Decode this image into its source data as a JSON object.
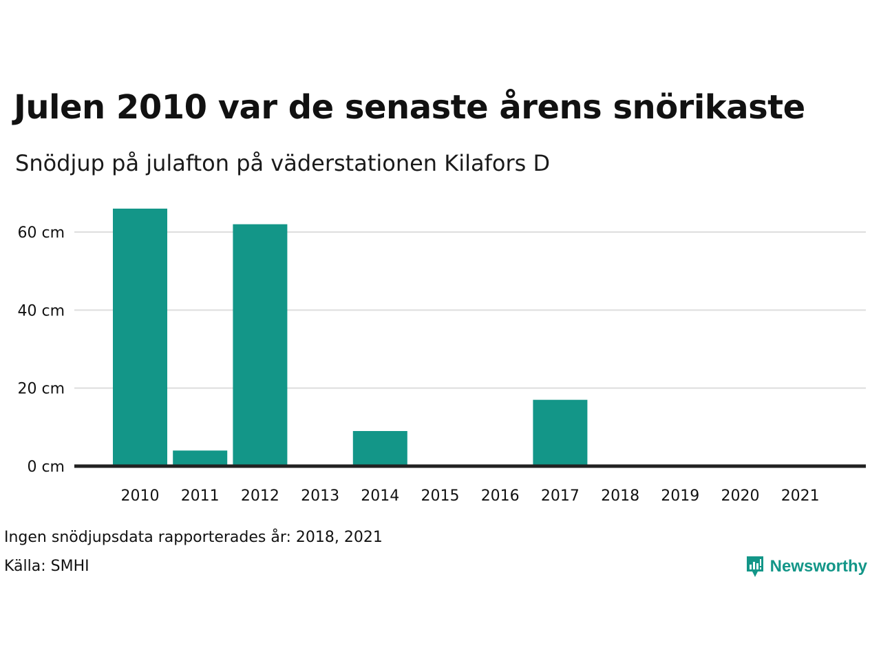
{
  "title": "Julen 2010 var de senaste årens snörikaste",
  "subtitle": "Snödjup på julafton på väderstationen Kilafors D",
  "note": "Ingen snödjupsdata rapporterades år: 2018, 2021",
  "source": "Källa: SMHI",
  "brand": {
    "name": "Newsworthy",
    "icon": "newsworthy-logo-icon",
    "color": "#139688"
  },
  "colors": {
    "bar": "#139688",
    "grid": "#dddddd",
    "baseline": "#222222"
  },
  "chart_data": {
    "type": "bar",
    "categories": [
      "2010",
      "2011",
      "2012",
      "2013",
      "2014",
      "2015",
      "2016",
      "2017",
      "2018",
      "2019",
      "2020",
      "2021"
    ],
    "values": [
      66,
      4,
      62,
      0,
      9,
      0,
      0,
      17,
      null,
      0,
      0,
      null
    ],
    "y_ticks": [
      0,
      20,
      40,
      60
    ],
    "y_tick_labels": [
      "0 cm",
      "20 cm",
      "40 cm",
      "60 cm"
    ],
    "ylim": [
      0,
      70
    ],
    "grid": true,
    "legend": "none",
    "xlabel": "",
    "ylabel": ""
  }
}
